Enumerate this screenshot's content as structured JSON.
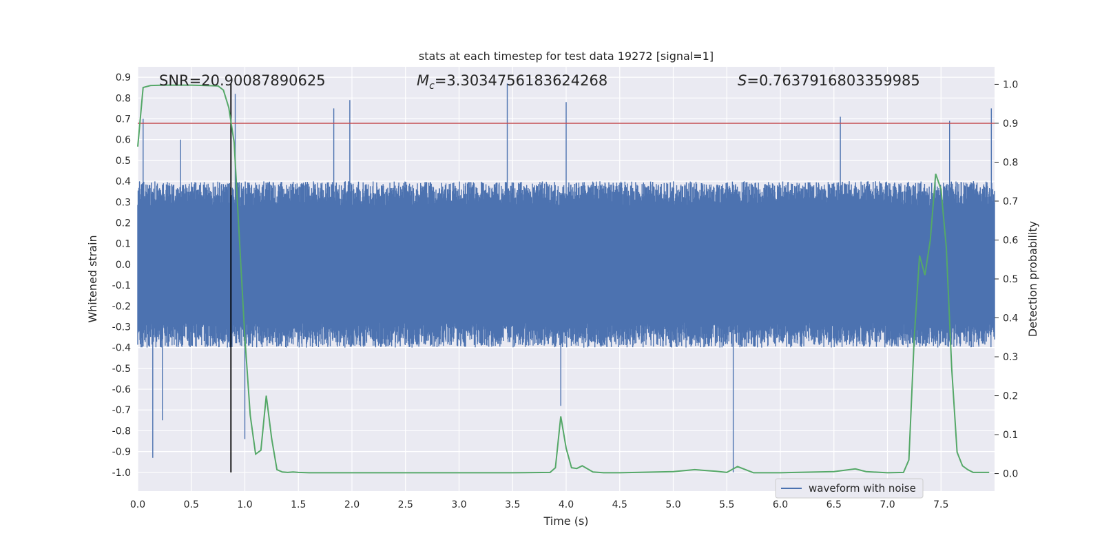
{
  "chart_data": {
    "type": "line",
    "title": "stats at each timestep for test data 19272 [signal=1]",
    "xlabel": "Time (s)",
    "ylabel": "Whitened strain",
    "y2label": "Detection probability",
    "xlim": [
      0.0,
      8.0
    ],
    "ylim": [
      -1.09,
      0.95
    ],
    "y2lim": [
      -0.045,
      1.045
    ],
    "xticks": [
      0.0,
      0.5,
      1.0,
      1.5,
      2.0,
      2.5,
      3.0,
      3.5,
      4.0,
      4.5,
      5.0,
      5.5,
      6.0,
      6.5,
      7.0,
      7.5
    ],
    "xtick_labels": [
      "0.0",
      "0.5",
      "1.0",
      "1.5",
      "2.0",
      "2.5",
      "3.0",
      "3.5",
      "4.0",
      "4.5",
      "5.0",
      "5.5",
      "6.0",
      "6.5",
      "7.0",
      "7.5"
    ],
    "yticks": [
      0.9,
      0.8,
      0.7,
      0.6,
      0.5,
      0.4,
      0.3,
      0.2,
      0.1,
      0.0,
      -0.1,
      -0.2,
      -0.3,
      -0.4,
      -0.5,
      -0.6,
      -0.7,
      -0.8,
      -0.9,
      -1.0
    ],
    "ytick_labels": [
      "0.9",
      "0.8",
      "0.7",
      "0.6",
      "0.5",
      "0.4",
      "0.3",
      "0.2",
      "0.1",
      "0.0",
      "-0.1",
      "-0.2",
      "-0.3",
      "-0.4",
      "-0.5",
      "-0.6",
      "-0.7",
      "-0.8",
      "-0.9",
      "-1.0"
    ],
    "y2ticks": [
      1.0,
      0.9,
      0.8,
      0.7,
      0.6,
      0.5,
      0.4,
      0.3,
      0.2,
      0.1,
      0.0
    ],
    "y2tick_labels": [
      "1.0",
      "0.9",
      "0.8",
      "0.7",
      "0.6",
      "0.5",
      "0.4",
      "0.3",
      "0.2",
      "0.1",
      "0.0"
    ],
    "annotations": {
      "snr": "SNR=20.90087890625",
      "mc_symbol": "M",
      "mc_subscript": "c",
      "mc_value": "=3.3034756183624268",
      "s_symbol": "S",
      "s_value": "=0.7637916803359985"
    },
    "legend": {
      "label": "waveform with noise",
      "position": "lower-right"
    },
    "vline_x": 0.87,
    "threshold_probability": 0.9,
    "series": [
      {
        "name": "waveform with noise",
        "axis": "left",
        "color": "#4c72b0",
        "style": "noise",
        "amplitude_typical": 0.32,
        "extremes": [
          {
            "x": 0.14,
            "y": -0.93
          },
          {
            "x": 0.05,
            "y": 0.7
          },
          {
            "x": 0.23,
            "y": -0.75
          },
          {
            "x": 0.4,
            "y": 0.6
          },
          {
            "x": 0.91,
            "y": 0.82
          },
          {
            "x": 1.0,
            "y": -0.84
          },
          {
            "x": 1.83,
            "y": 0.75
          },
          {
            "x": 1.98,
            "y": 0.79
          },
          {
            "x": 3.45,
            "y": 0.87
          },
          {
            "x": 3.95,
            "y": -0.68
          },
          {
            "x": 4.0,
            "y": 0.78
          },
          {
            "x": 5.56,
            "y": -1.0
          },
          {
            "x": 6.56,
            "y": 0.71
          },
          {
            "x": 7.58,
            "y": 0.69
          },
          {
            "x": 7.97,
            "y": 0.75
          }
        ]
      },
      {
        "name": "Detection probability",
        "axis": "right",
        "color": "#55a868",
        "x": [
          0.0,
          0.05,
          0.12,
          0.25,
          0.5,
          0.75,
          0.8,
          0.85,
          0.9,
          0.95,
          1.0,
          1.05,
          1.1,
          1.15,
          1.2,
          1.25,
          1.3,
          1.35,
          1.4,
          1.45,
          1.5,
          1.6,
          1.8,
          2.0,
          2.5,
          3.0,
          3.5,
          3.85,
          3.9,
          3.95,
          4.0,
          4.05,
          4.1,
          4.15,
          4.25,
          4.35,
          4.5,
          5.0,
          5.2,
          5.4,
          5.5,
          5.6,
          5.75,
          6.0,
          6.5,
          6.7,
          6.8,
          7.0,
          7.15,
          7.2,
          7.25,
          7.3,
          7.35,
          7.4,
          7.45,
          7.5,
          7.55,
          7.6,
          7.65,
          7.7,
          7.75,
          7.8,
          7.85,
          7.9,
          7.95
        ],
        "y": [
          0.84,
          0.992,
          0.997,
          0.998,
          0.998,
          0.996,
          0.985,
          0.94,
          0.85,
          0.6,
          0.35,
          0.15,
          0.05,
          0.06,
          0.2,
          0.09,
          0.01,
          0.004,
          0.003,
          0.004,
          0.003,
          0.002,
          0.002,
          0.002,
          0.002,
          0.002,
          0.002,
          0.003,
          0.015,
          0.147,
          0.065,
          0.015,
          0.013,
          0.02,
          0.004,
          0.002,
          0.002,
          0.005,
          0.01,
          0.006,
          0.003,
          0.018,
          0.002,
          0.002,
          0.005,
          0.012,
          0.005,
          0.002,
          0.003,
          0.035,
          0.35,
          0.56,
          0.51,
          0.6,
          0.77,
          0.73,
          0.58,
          0.27,
          0.055,
          0.02,
          0.01,
          0.003,
          0.003,
          0.003,
          0.003
        ]
      }
    ]
  }
}
